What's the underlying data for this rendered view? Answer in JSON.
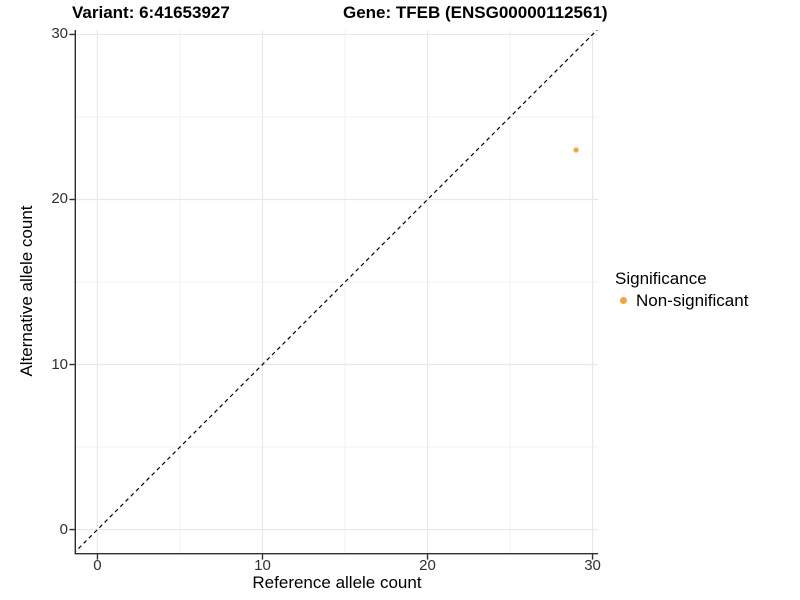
{
  "titles": {
    "variant": "Variant: 6:41653927",
    "gene": "Gene: TFEB (ENSG00000112561)"
  },
  "chart_data": {
    "type": "scatter",
    "xlabel": "Reference allele count",
    "ylabel": "Alternative allele count",
    "xlim": [
      -1.3,
      30.33
    ],
    "ylim": [
      -1.42,
      30.27
    ],
    "x_ticks": [
      0,
      10,
      20,
      30
    ],
    "y_ticks": [
      0,
      10,
      20,
      30
    ],
    "x_minor_ticks": [
      5,
      15,
      25
    ],
    "y_minor_ticks": [
      5,
      15,
      25
    ],
    "grid": true,
    "identity_line": {
      "type": "y=x",
      "style": "dashed",
      "color": "#000000"
    },
    "series": [
      {
        "name": "Non-significant",
        "color": "#F9A242",
        "points": [
          {
            "x": 29,
            "y": 23
          }
        ]
      }
    ],
    "legend": {
      "title": "Significance",
      "position": "right",
      "items": [
        {
          "label": "Non-significant",
          "color": "#F9A242"
        }
      ]
    }
  }
}
